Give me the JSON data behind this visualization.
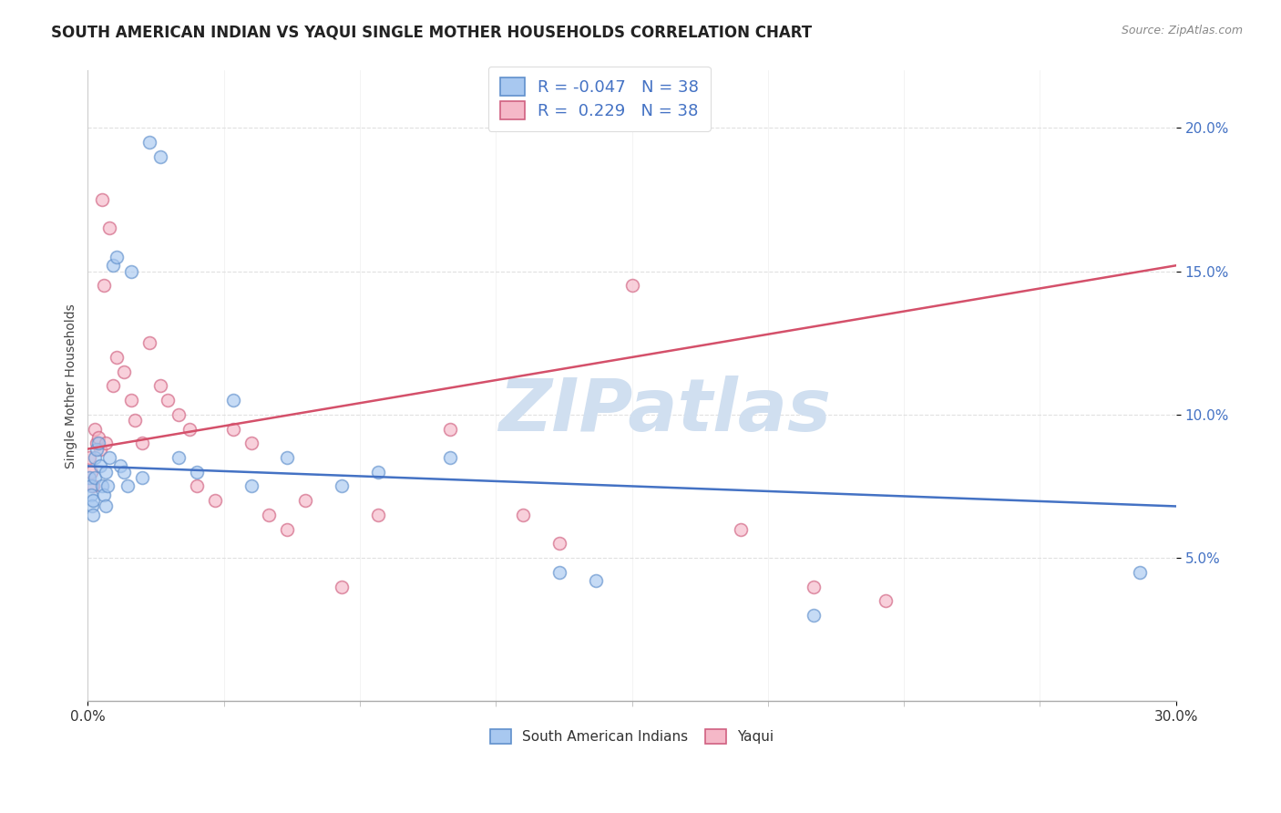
{
  "title": "SOUTH AMERICAN INDIAN VS YAQUI SINGLE MOTHER HOUSEHOLDS CORRELATION CHART",
  "source": "Source: ZipAtlas.com",
  "ylabel": "Single Mother Households",
  "watermark": "ZIPatlas",
  "legend_blue_r": "-0.047",
  "legend_blue_n": "38",
  "legend_pink_r": "0.229",
  "legend_pink_n": "38",
  "legend_blue_label": "South American Indians",
  "legend_pink_label": "Yaqui",
  "xlim": [
    0.0,
    30.0
  ],
  "ylim": [
    0.0,
    22.0
  ],
  "yticks": [
    5.0,
    10.0,
    15.0,
    20.0
  ],
  "xtick_minor": [
    0.0,
    3.75,
    7.5,
    11.25,
    15.0,
    18.75,
    22.5,
    26.25,
    30.0
  ],
  "blue_scatter_x": [
    0.05,
    0.08,
    0.1,
    0.12,
    0.15,
    0.15,
    0.2,
    0.2,
    0.25,
    0.3,
    0.35,
    0.4,
    0.45,
    0.5,
    0.5,
    0.55,
    0.6,
    0.7,
    0.8,
    0.9,
    1.0,
    1.1,
    1.2,
    1.5,
    1.7,
    2.0,
    2.5,
    3.0,
    4.0,
    4.5,
    5.5,
    7.0,
    8.0,
    10.0,
    13.0,
    14.0,
    20.0,
    29.0
  ],
  "blue_scatter_y": [
    7.8,
    7.5,
    7.2,
    6.8,
    7.0,
    6.5,
    7.8,
    8.5,
    8.8,
    9.0,
    8.2,
    7.5,
    7.2,
    6.8,
    8.0,
    7.5,
    8.5,
    15.2,
    15.5,
    8.2,
    8.0,
    7.5,
    15.0,
    7.8,
    19.5,
    19.0,
    8.5,
    8.0,
    10.5,
    7.5,
    8.5,
    7.5,
    8.0,
    8.5,
    4.5,
    4.2,
    3.0,
    4.5
  ],
  "pink_scatter_x": [
    0.05,
    0.1,
    0.15,
    0.2,
    0.25,
    0.3,
    0.35,
    0.4,
    0.45,
    0.5,
    0.6,
    0.7,
    0.8,
    1.0,
    1.2,
    1.3,
    1.5,
    1.7,
    2.0,
    2.2,
    2.5,
    2.8,
    3.0,
    3.5,
    4.0,
    4.5,
    5.0,
    5.5,
    6.0,
    7.0,
    8.0,
    10.0,
    12.0,
    13.0,
    15.0,
    18.0,
    20.0,
    22.0
  ],
  "pink_scatter_y": [
    8.5,
    8.0,
    7.5,
    9.5,
    9.0,
    9.2,
    8.8,
    17.5,
    14.5,
    9.0,
    16.5,
    11.0,
    12.0,
    11.5,
    10.5,
    9.8,
    9.0,
    12.5,
    11.0,
    10.5,
    10.0,
    9.5,
    7.5,
    7.0,
    9.5,
    9.0,
    6.5,
    6.0,
    7.0,
    4.0,
    6.5,
    9.5,
    6.5,
    5.5,
    14.5,
    6.0,
    4.0,
    3.5
  ],
  "blue_line_x": [
    0.0,
    30.0
  ],
  "blue_line_y": [
    8.2,
    6.8
  ],
  "pink_line_x": [
    0.0,
    30.0
  ],
  "pink_line_y": [
    8.8,
    15.2
  ],
  "blue_color": "#A8C8F0",
  "pink_color": "#F5B8C8",
  "blue_edge_color": "#6090CC",
  "pink_edge_color": "#D06080",
  "blue_line_color": "#4472C4",
  "pink_line_color": "#D4506A",
  "text_blue_color": "#4472C4",
  "grid_color": "#DDDDDD",
  "background_color": "#FFFFFF",
  "title_fontsize": 12,
  "source_fontsize": 9,
  "axis_label_fontsize": 10,
  "tick_fontsize": 11,
  "watermark_color": "#D0DFF0",
  "scatter_size": 100,
  "scatter_alpha": 0.65,
  "scatter_linewidth": 1.2,
  "line_width": 1.8
}
